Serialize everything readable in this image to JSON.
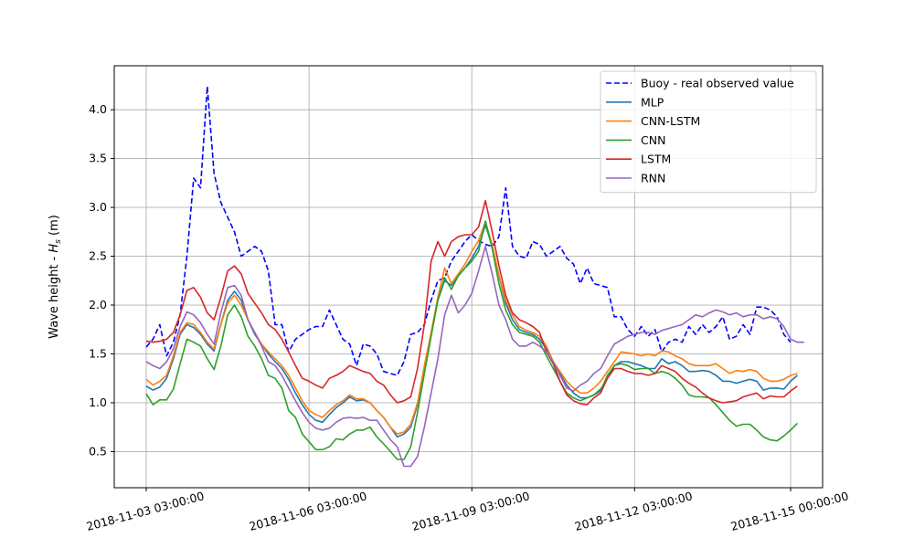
{
  "chart_data": {
    "type": "line",
    "ylabel": "Wave height - H_s (m)",
    "ylabel_main": "Wave height - ",
    "ylabel_sym": "H",
    "ylabel_sub": "s",
    "ylabel_unit": " (m)",
    "ylim": [
      0.13,
      4.45
    ],
    "y_ticks": [
      0.5,
      1.0,
      1.5,
      2.0,
      2.5,
      3.0,
      3.5,
      4.0
    ],
    "y_tick_labels": [
      "0.5",
      "1.0",
      "1.5",
      "2.0",
      "2.5",
      "3.0",
      "3.5",
      "4.0"
    ],
    "x_ticks": [
      {
        "label": "2018-11-03 03:00:00",
        "index": 0
      },
      {
        "label": "2018-11-06 03:00:00",
        "index": 24
      },
      {
        "label": "2018-11-09 03:00:00",
        "index": 48
      },
      {
        "label": "2018-11-12 03:00:00",
        "index": 72
      },
      {
        "label": "2018-11-15 00:00:00",
        "index": 95
      }
    ],
    "grid": true,
    "legend_position": "top-right",
    "series": [
      {
        "name": "Buoy - real observed value",
        "color": "#0000ff",
        "dash": true,
        "values": [
          1.57,
          1.65,
          1.8,
          1.48,
          1.62,
          1.9,
          2.5,
          3.3,
          3.2,
          4.24,
          3.35,
          3.05,
          2.9,
          2.75,
          2.5,
          2.55,
          2.6,
          2.55,
          2.35,
          1.8,
          1.8,
          1.52,
          1.65,
          1.7,
          1.75,
          1.78,
          1.78,
          1.95,
          1.8,
          1.65,
          1.6,
          1.38,
          1.6,
          1.58,
          1.5,
          1.32,
          1.3,
          1.28,
          1.42,
          1.7,
          1.72,
          1.8,
          2.05,
          2.25,
          2.28,
          2.45,
          2.55,
          2.65,
          2.72,
          2.66,
          2.62,
          2.6,
          2.7,
          3.2,
          2.6,
          2.5,
          2.48,
          2.65,
          2.62,
          2.5,
          2.55,
          2.6,
          2.48,
          2.42,
          2.22,
          2.38,
          2.22,
          2.2,
          2.18,
          1.88,
          1.88,
          1.75,
          1.68,
          1.78,
          1.68,
          1.75,
          1.52,
          1.62,
          1.65,
          1.62,
          1.78,
          1.7,
          1.8,
          1.72,
          1.78,
          1.88,
          1.65,
          1.68,
          1.8,
          1.7,
          1.98,
          1.98,
          1.95,
          1.88,
          1.7,
          1.62
        ]
      },
      {
        "name": "MLP",
        "color": "#1f77b4",
        "values": [
          1.17,
          1.13,
          1.16,
          1.25,
          1.45,
          1.7,
          1.8,
          1.77,
          1.7,
          1.6,
          1.53,
          1.8,
          2.05,
          2.14,
          2.05,
          1.85,
          1.7,
          1.6,
          1.5,
          1.42,
          1.35,
          1.24,
          1.1,
          0.98,
          0.88,
          0.82,
          0.8,
          0.88,
          0.95,
          1.0,
          1.06,
          1.02,
          1.03,
          1.0,
          0.92,
          0.85,
          0.75,
          0.65,
          0.68,
          0.75,
          0.98,
          1.35,
          1.7,
          2.05,
          2.25,
          2.2,
          2.3,
          2.38,
          2.48,
          2.6,
          2.82,
          2.6,
          2.3,
          2.02,
          1.85,
          1.75,
          1.72,
          1.7,
          1.65,
          1.55,
          1.4,
          1.3,
          1.18,
          1.1,
          1.05,
          1.05,
          1.08,
          1.14,
          1.25,
          1.38,
          1.42,
          1.42,
          1.4,
          1.38,
          1.35,
          1.35,
          1.45,
          1.4,
          1.42,
          1.38,
          1.32,
          1.32,
          1.33,
          1.32,
          1.28,
          1.22,
          1.22,
          1.2,
          1.22,
          1.24,
          1.22,
          1.13,
          1.15,
          1.15,
          1.14,
          1.22,
          1.28
        ]
      },
      {
        "name": "CNN-LSTM",
        "color": "#ff7f0e",
        "values": [
          1.24,
          1.18,
          1.22,
          1.28,
          1.48,
          1.72,
          1.82,
          1.8,
          1.72,
          1.62,
          1.55,
          1.8,
          2.02,
          2.1,
          2.0,
          1.85,
          1.72,
          1.6,
          1.52,
          1.45,
          1.38,
          1.28,
          1.15,
          1.02,
          0.92,
          0.88,
          0.85,
          0.92,
          0.98,
          1.02,
          1.08,
          1.04,
          1.04,
          1.0,
          0.92,
          0.85,
          0.75,
          0.68,
          0.7,
          0.78,
          1.0,
          1.38,
          1.72,
          2.08,
          2.38,
          2.22,
          2.32,
          2.42,
          2.55,
          2.66,
          2.85,
          2.62,
          2.3,
          2.05,
          1.9,
          1.78,
          1.74,
          1.72,
          1.68,
          1.58,
          1.42,
          1.32,
          1.22,
          1.15,
          1.1,
          1.1,
          1.15,
          1.22,
          1.32,
          1.42,
          1.52,
          1.51,
          1.5,
          1.48,
          1.5,
          1.48,
          1.53,
          1.52,
          1.48,
          1.45,
          1.4,
          1.38,
          1.38,
          1.38,
          1.4,
          1.35,
          1.3,
          1.33,
          1.32,
          1.34,
          1.32,
          1.25,
          1.22,
          1.22,
          1.24,
          1.28,
          1.3
        ]
      },
      {
        "name": "CNN",
        "color": "#2ca02c",
        "values": [
          1.09,
          0.98,
          1.03,
          1.03,
          1.14,
          1.4,
          1.65,
          1.62,
          1.58,
          1.45,
          1.34,
          1.58,
          1.9,
          2.0,
          1.88,
          1.68,
          1.58,
          1.45,
          1.28,
          1.25,
          1.15,
          0.92,
          0.85,
          0.68,
          0.6,
          0.52,
          0.52,
          0.55,
          0.63,
          0.62,
          0.68,
          0.72,
          0.72,
          0.75,
          0.65,
          0.58,
          0.5,
          0.42,
          0.42,
          0.55,
          0.9,
          1.3,
          1.68,
          2.05,
          2.28,
          2.16,
          2.3,
          2.38,
          2.45,
          2.55,
          2.86,
          2.58,
          2.22,
          1.95,
          1.8,
          1.72,
          1.7,
          1.68,
          1.62,
          1.48,
          1.35,
          1.22,
          1.1,
          1.05,
          1.02,
          1.05,
          1.08,
          1.12,
          1.28,
          1.38,
          1.4,
          1.38,
          1.34,
          1.35,
          1.35,
          1.3,
          1.32,
          1.3,
          1.25,
          1.18,
          1.08,
          1.06,
          1.06,
          1.05,
          0.98,
          0.9,
          0.82,
          0.76,
          0.78,
          0.78,
          0.72,
          0.65,
          0.62,
          0.61,
          0.66,
          0.72,
          0.79
        ]
      },
      {
        "name": "LSTM",
        "color": "#d62728",
        "values": [
          1.63,
          1.62,
          1.63,
          1.65,
          1.72,
          1.9,
          2.15,
          2.18,
          2.08,
          1.92,
          1.85,
          2.08,
          2.35,
          2.4,
          2.32,
          2.12,
          2.02,
          1.92,
          1.8,
          1.75,
          1.65,
          1.52,
          1.38,
          1.25,
          1.22,
          1.18,
          1.15,
          1.25,
          1.28,
          1.32,
          1.38,
          1.35,
          1.32,
          1.3,
          1.22,
          1.18,
          1.08,
          1.0,
          1.02,
          1.06,
          1.35,
          1.8,
          2.45,
          2.65,
          2.5,
          2.65,
          2.7,
          2.72,
          2.72,
          2.8,
          3.07,
          2.75,
          2.4,
          2.1,
          1.92,
          1.85,
          1.82,
          1.78,
          1.72,
          1.52,
          1.4,
          1.22,
          1.08,
          1.02,
          0.99,
          0.98,
          1.05,
          1.1,
          1.25,
          1.35,
          1.35,
          1.32,
          1.3,
          1.3,
          1.28,
          1.3,
          1.38,
          1.35,
          1.32,
          1.25,
          1.2,
          1.16,
          1.1,
          1.05,
          1.02,
          1.0,
          1.01,
          1.02,
          1.06,
          1.08,
          1.1,
          1.04,
          1.07,
          1.06,
          1.06,
          1.12,
          1.17
        ]
      },
      {
        "name": "RNN",
        "color": "#9467bd",
        "values": [
          1.42,
          1.38,
          1.35,
          1.42,
          1.55,
          1.78,
          1.93,
          1.9,
          1.82,
          1.7,
          1.6,
          1.92,
          2.18,
          2.2,
          2.1,
          1.85,
          1.72,
          1.58,
          1.42,
          1.38,
          1.28,
          1.15,
          1.02,
          0.9,
          0.8,
          0.74,
          0.72,
          0.74,
          0.8,
          0.84,
          0.85,
          0.84,
          0.85,
          0.82,
          0.82,
          0.72,
          0.62,
          0.55,
          0.35,
          0.35,
          0.45,
          0.75,
          1.1,
          1.45,
          1.9,
          2.1,
          1.92,
          2.0,
          2.12,
          2.35,
          2.6,
          2.32,
          2.0,
          1.85,
          1.65,
          1.58,
          1.58,
          1.62,
          1.58,
          1.52,
          1.42,
          1.28,
          1.15,
          1.12,
          1.18,
          1.22,
          1.3,
          1.35,
          1.48,
          1.6,
          1.64,
          1.68,
          1.7,
          1.72,
          1.72,
          1.7,
          1.74,
          1.76,
          1.78,
          1.8,
          1.85,
          1.9,
          1.88,
          1.92,
          1.95,
          1.93,
          1.9,
          1.92,
          1.88,
          1.9,
          1.9,
          1.86,
          1.88,
          1.86,
          1.78,
          1.65,
          1.62,
          1.62
        ]
      }
    ]
  }
}
